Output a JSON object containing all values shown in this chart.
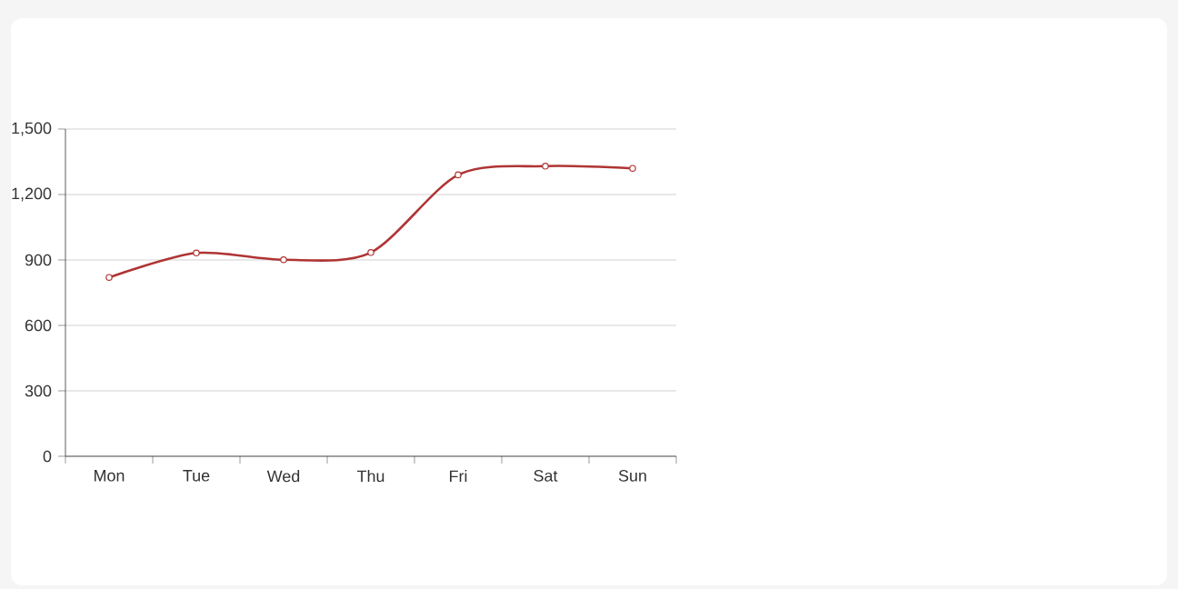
{
  "chart_data": {
    "type": "line",
    "categories": [
      "Mon",
      "Tue",
      "Wed",
      "Thu",
      "Fri",
      "Sat",
      "Sun"
    ],
    "series": [
      {
        "color": "#b03434",
        "values": [
          820,
          932,
          901,
          934,
          1290,
          1330,
          1320
        ]
      }
    ],
    "ylim": [
      0,
      1500
    ],
    "yticks": [
      0,
      300,
      600,
      900,
      {
        "value": 1200,
        "label": "1,200"
      },
      {
        "value": 1500,
        "label": "1,500"
      }
    ],
    "grid": "y",
    "marker": "circle",
    "line_style": "solid"
  }
}
